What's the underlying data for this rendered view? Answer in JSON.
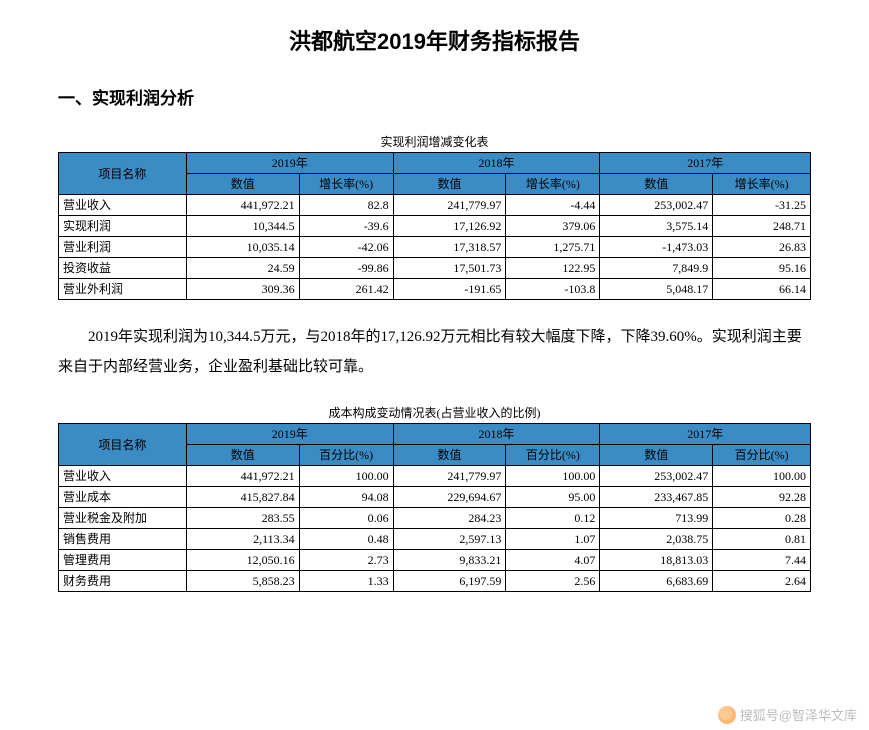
{
  "title": "洪都航空2019年财务指标报告",
  "section1_heading": "一、实现利润分析",
  "table1": {
    "caption": "实现利润增减变化表",
    "col0_header": "项目名称",
    "years": [
      "2019年",
      "2018年",
      "2017年"
    ],
    "subheaders_value": "数值",
    "subheaders_rate": "增长率(%)",
    "rows": [
      {
        "label": "营业收入",
        "v": [
          "441,972.21",
          "82.8",
          "241,779.97",
          "-4.44",
          "253,002.47",
          "-31.25"
        ]
      },
      {
        "label": "实现利润",
        "v": [
          "10,344.5",
          "-39.6",
          "17,126.92",
          "379.06",
          "3,575.14",
          "248.71"
        ]
      },
      {
        "label": "营业利润",
        "v": [
          "10,035.14",
          "-42.06",
          "17,318.57",
          "1,275.71",
          "-1,473.03",
          "26.83"
        ]
      },
      {
        "label": "投资收益",
        "v": [
          "24.59",
          "-99.86",
          "17,501.73",
          "122.95",
          "7,849.9",
          "95.16"
        ]
      },
      {
        "label": "营业外利润",
        "v": [
          "309.36",
          "261.42",
          "-191.65",
          "-103.8",
          "5,048.17",
          "66.14"
        ]
      }
    ]
  },
  "paragraph": "2019年实现利润为10,344.5万元，与2018年的17,126.92万元相比有较大幅度下降，下降39.60%。实现利润主要来自于内部经营业务，企业盈利基础比较可靠。",
  "table2": {
    "caption": "成本构成变动情况表(占营业收入的比例)",
    "col0_header": "项目名称",
    "years": [
      "2019年",
      "2018年",
      "2017年"
    ],
    "subheaders_value": "数值",
    "subheaders_pct": "百分比(%)",
    "rows": [
      {
        "label": "营业收入",
        "v": [
          "441,972.21",
          "100.00",
          "241,779.97",
          "100.00",
          "253,002.47",
          "100.00"
        ]
      },
      {
        "label": "营业成本",
        "v": [
          "415,827.84",
          "94.08",
          "229,694.67",
          "95.00",
          "233,467.85",
          "92.28"
        ]
      },
      {
        "label": "营业税金及附加",
        "v": [
          "283.55",
          "0.06",
          "284.23",
          "0.12",
          "713.99",
          "0.28"
        ]
      },
      {
        "label": "销售费用",
        "v": [
          "2,113.34",
          "0.48",
          "2,597.13",
          "1.07",
          "2,038.75",
          "0.81"
        ]
      },
      {
        "label": "管理费用",
        "v": [
          "12,050.16",
          "2.73",
          "9,833.21",
          "4.07",
          "18,813.03",
          "7.44"
        ]
      },
      {
        "label": "财务费用",
        "v": [
          "5,858.23",
          "1.33",
          "6,197.59",
          "2.56",
          "6,683.69",
          "2.64"
        ]
      }
    ]
  },
  "watermark_text": "搜狐号@智泽华文库",
  "colors": {
    "header_bg": "#3b8bc4",
    "border": "#000000",
    "text": "#000000",
    "watermark": "#bdbdbd"
  }
}
